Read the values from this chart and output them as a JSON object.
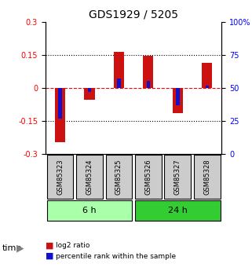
{
  "title": "GDS1929 / 5205",
  "samples": [
    "GSM85323",
    "GSM85324",
    "GSM85325",
    "GSM85326",
    "GSM85327",
    "GSM85328"
  ],
  "log2_ratio": [
    -0.245,
    -0.055,
    0.165,
    0.145,
    -0.115,
    0.115
  ],
  "percentile_rank": [
    27,
    47,
    57,
    55,
    37,
    52
  ],
  "groups": [
    {
      "label": "6 h",
      "samples": [
        "GSM85323",
        "GSM85324",
        "GSM85325"
      ],
      "color": "#aaffaa"
    },
    {
      "label": "24 h",
      "samples": [
        "GSM85326",
        "GSM85327",
        "GSM85328"
      ],
      "color": "#33cc33"
    }
  ],
  "group_label": "time",
  "ylim_left": [
    -0.3,
    0.3
  ],
  "ylim_right": [
    0,
    100
  ],
  "yticks_left": [
    -0.3,
    -0.15,
    0,
    0.15,
    0.3
  ],
  "yticks_right": [
    0,
    25,
    50,
    75,
    100
  ],
  "ytick_labels_left": [
    "-0.3",
    "-0.15",
    "0",
    "0.15",
    "0.3"
  ],
  "ytick_labels_right": [
    "0",
    "25",
    "50",
    "75",
    "100%"
  ],
  "hlines": [
    0.15,
    0,
    -0.15
  ],
  "hline_styles": [
    "dotted",
    "dashed_red",
    "dotted"
  ],
  "bar_color_log2": "#cc1111",
  "bar_color_pct": "#1111cc",
  "bar_width": 0.35,
  "pct_bar_width": 0.15,
  "bg_color": "#ffffff",
  "grid_color": "#cccccc",
  "sample_box_color": "#cccccc",
  "legend_items": [
    {
      "color": "#cc1111",
      "label": "log2 ratio"
    },
    {
      "color": "#1111cc",
      "label": "percentile rank within the sample"
    }
  ]
}
